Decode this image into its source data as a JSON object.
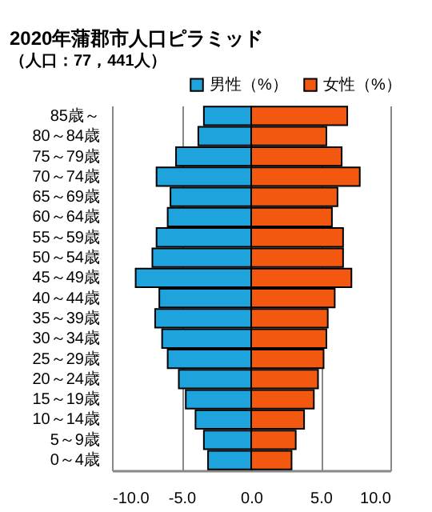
{
  "chart_data": {
    "type": "bar",
    "orientation": "horizontal",
    "stacked": true,
    "title": "2020年蒲郡市人口ピラミッド",
    "subtitle": "（人口：77，441人）",
    "categories": [
      "85歳～",
      "80～84歳",
      "75～79歳",
      "70～74歳",
      "65～69歳",
      "60～64歳",
      "55～59歳",
      "50～54歳",
      "45～49歳",
      "40～44歳",
      "35～39歳",
      "30～34歳",
      "25～29歳",
      "20～24歳",
      "15～19歳",
      "10～14歳",
      "5～9歳",
      "0～4歳"
    ],
    "series": [
      {
        "name": "男性（%）",
        "color": "#1ea3dc",
        "values": [
          -3.4,
          -3.8,
          -5.4,
          -6.8,
          -5.8,
          -6.0,
          -6.8,
          -7.1,
          -8.3,
          -6.6,
          -6.9,
          -6.4,
          -6.0,
          -5.2,
          -4.7,
          -4.0,
          -3.4,
          -3.1
        ]
      },
      {
        "name": "女性（%）",
        "color": "#f2580f",
        "values": [
          6.9,
          5.4,
          6.5,
          7.8,
          6.2,
          5.8,
          6.6,
          6.6,
          7.2,
          6.0,
          5.5,
          5.4,
          5.2,
          4.8,
          4.5,
          3.8,
          3.2,
          2.9
        ]
      }
    ],
    "xlim": [
      -10,
      10
    ],
    "xticks": [
      {
        "value": -10,
        "label": "-10.0"
      },
      {
        "value": -5,
        "label": "-5.0"
      },
      {
        "value": 0,
        "label": "0.0"
      },
      {
        "value": 5,
        "label": "5.0"
      },
      {
        "value": 10,
        "label": "10.0"
      }
    ],
    "grid": "x",
    "legend": "top right"
  }
}
